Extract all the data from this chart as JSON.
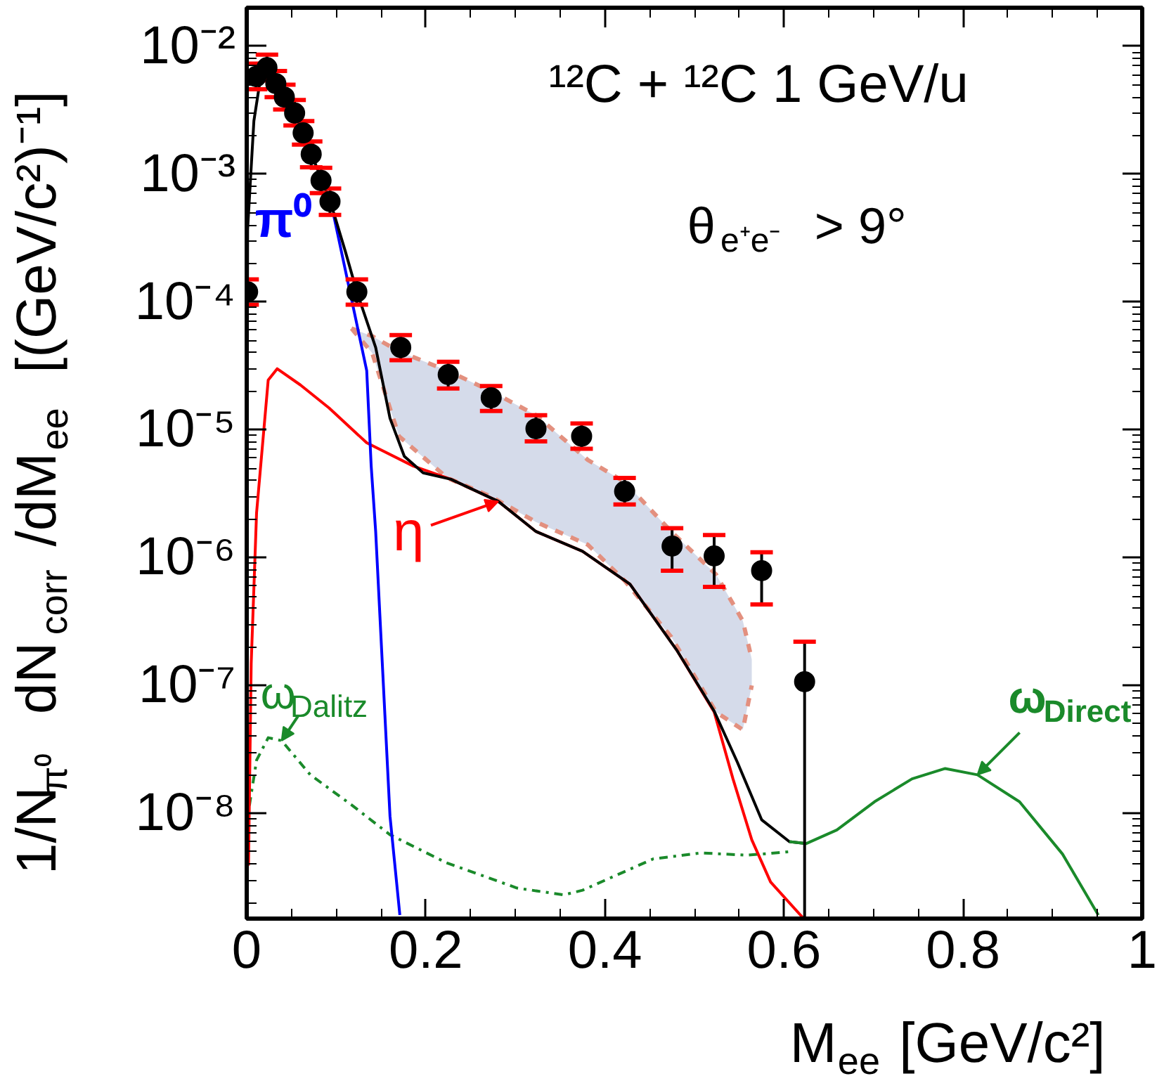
{
  "chart_data": {
    "type": "line",
    "xlabel": "M$_{ee}$ [GeV/c²]",
    "ylabel": "1/N$_{π⁰}$  dN$_{corr}$/dM$_{ee}$  [(GeV/c²)⁻¹]",
    "annotations": [
      "¹²C + ¹²C    1 GeV/u",
      "θ$_{e⁺e⁻}$ > 9°"
    ],
    "log": true,
    "xlim": [
      0,
      1
    ],
    "xticks": [
      0,
      0.2,
      0.4,
      0.6,
      0.8,
      1
    ],
    "ylim": [
      1.5e-09,
      0.02
    ],
    "yticks": [
      {
        "value": 1e-08,
        "label": "10⁻⁸"
      },
      {
        "value": 1e-07,
        "label": "10⁻⁷"
      },
      {
        "value": 1e-06,
        "label": "10⁻⁶"
      },
      {
        "value": 1e-05,
        "label": "10⁻⁵"
      },
      {
        "value": 0.0001,
        "label": "10⁻⁴"
      },
      {
        "value": 0.001,
        "label": "10⁻³"
      },
      {
        "value": 0.01,
        "label": "10⁻²"
      }
    ],
    "series": [
      {
        "type": "line",
        "color": "#e3907f",
        "line_style": "dashed",
        "x": [
          0.117,
          0.14,
          0.17,
          0.224,
          0.273,
          0.323,
          0.381,
          0.422,
          0.474,
          0.524,
          0.554,
          0.564
        ],
        "values": [
          6.2e-05,
          5.4e-05,
          4.1e-05,
          2.9e-05,
          2e-05,
          1.3e-05,
          5.8e-06,
          3.9e-06,
          1.6e-06,
          7.4e-07,
          3.2e-07,
          1.6e-07
        ]
      },
      {
        "type": "line",
        "color": "#e3907f",
        "line_style": "dashed",
        "x": [
          0.117,
          0.14,
          0.17,
          0.224,
          0.273,
          0.323,
          0.381,
          0.422,
          0.474,
          0.524,
          0.554,
          0.564
        ],
        "values": [
          6.2e-05,
          4e-05,
          8.9e-06,
          4.2e-06,
          3e-06,
          1.9e-06,
          1.26e-06,
          6.6e-07,
          2.4e-07,
          6.2e-08,
          4.5e-08,
          1e-07
        ]
      },
      {
        "type": "area",
        "color": "#d5dbea",
        "x": [
          0.117,
          0.14,
          0.17,
          0.224,
          0.273,
          0.323,
          0.381,
          0.422,
          0.474,
          0.524,
          0.554,
          0.564
        ],
        "values": [
          null,
          null,
          null,
          null,
          null,
          null,
          null,
          null,
          null,
          null,
          null,
          null
        ],
        "upper": [
          6.2e-05,
          5.4e-05,
          4.1e-05,
          2.9e-05,
          2e-05,
          1.3e-05,
          5.8e-06,
          3.9e-06,
          1.6e-06,
          7.4e-07,
          3.2e-07,
          1.6e-07
        ],
        "lower": [
          6.2e-05,
          4e-05,
          8.9e-06,
          4.2e-06,
          3e-06,
          1.9e-06,
          1.26e-06,
          6.6e-07,
          2.4e-07,
          6.2e-08,
          4.5e-08,
          1e-07
        ]
      },
      {
        "name": "ω$_{Dalitz}$",
        "color": "#1a8a2a",
        "line_style": "dashdot",
        "x": [
          0.003,
          0.011,
          0.024,
          0.039,
          0.071,
          0.118,
          0.16,
          0.223,
          0.302,
          0.354,
          0.375,
          0.454,
          0.507,
          0.559,
          0.606
        ],
        "values": [
          1.15e-08,
          2.6e-08,
          3.9e-08,
          3.7e-08,
          2e-08,
          1.15e-08,
          6.8e-09,
          4.1e-09,
          2.6e-09,
          2.3e-09,
          2.5e-09,
          4.4e-09,
          4.9e-09,
          4.7e-09,
          5e-09
        ]
      },
      {
        "name": "η",
        "color": "#ff0000",
        "x": [
          0.002,
          0.005,
          0.011,
          0.024,
          0.034,
          0.06,
          0.092,
          0.134,
          0.186,
          0.228,
          0.281,
          0.323,
          0.375,
          0.428,
          0.48,
          0.522,
          0.543,
          0.564,
          0.585,
          0.622
        ],
        "values": [
          3.9e-09,
          1.48e-07,
          2.24e-06,
          2.45e-05,
          3e-05,
          2.24e-05,
          1.48e-05,
          7.9e-06,
          5.2e-06,
          4.1e-06,
          2.75e-06,
          1.6e-06,
          1.12e-06,
          6.2e-07,
          1.9e-07,
          6.2e-08,
          1.86e-08,
          6.2e-09,
          2.9e-09,
          1.5e-09
        ]
      },
      {
        "name": "π⁰",
        "color": "#0000ff",
        "x": [
          0.097,
          0.134,
          0.139,
          0.144,
          0.152,
          0.16,
          0.171
        ],
        "values": [
          0.00048,
          2.9e-05,
          5.2e-06,
          1.6e-06,
          1.23e-07,
          9.5e-09,
          1.6e-09
        ]
      },
      {
        "color": "#000000",
        "x": [
          0,
          0.001,
          0.008,
          0.016,
          0.024,
          0.05,
          0.08,
          0.093,
          0.11,
          0.123,
          0.144,
          0.16,
          0.176,
          0.197,
          0.228,
          0.281,
          0.323,
          0.375,
          0.428,
          0.48,
          0.522,
          0.548,
          0.575,
          0.606,
          0.625
        ],
        "values": [
          2e-09,
          0.00037,
          0.0026,
          0.006,
          0.0068,
          0.0035,
          0.00105,
          0.00062,
          0.00025,
          0.00012,
          4.4e-05,
          1.23e-05,
          6.2e-06,
          4.6e-06,
          4.1e-06,
          2.75e-06,
          1.6e-06,
          1.12e-06,
          6.2e-07,
          1.9e-07,
          6.3e-08,
          2.5e-08,
          8.9e-09,
          6e-09,
          5.8e-09
        ]
      },
      {
        "name": "ω$_{Direct}$",
        "color": "#1a8a2a",
        "x": [
          0.606,
          0.625,
          0.659,
          0.701,
          0.743,
          0.78,
          0.816,
          0.863,
          0.911,
          0.951
        ],
        "values": [
          6e-09,
          5.8e-09,
          7.4e-09,
          1.23e-08,
          1.86e-08,
          2.24e-08,
          2e-08,
          1.23e-08,
          4.8e-09,
          1.6e-09
        ]
      },
      {
        "type": "scatter",
        "color": "#000000",
        "marker": "circle",
        "x": [
          0.001,
          0.0105,
          0.0226,
          0.0325,
          0.042,
          0.0535,
          0.063,
          0.072,
          0.083,
          0.093,
          0.123,
          0.172,
          0.225,
          0.273,
          0.323,
          0.374,
          0.422,
          0.475,
          0.522,
          0.575,
          0.623
        ],
        "values": [
          0.00012,
          0.0058,
          0.0068,
          0.0051,
          0.004,
          0.003,
          0.0021,
          0.00143,
          0.00089,
          0.00061,
          0.00012,
          4.4e-05,
          2.7e-05,
          1.78e-05,
          1.02e-05,
          8.9e-06,
          3.3e-06,
          1.23e-06,
          1.03e-06,
          7.9e-07,
          1.07e-07
        ],
        "errors": [
          [
            9.5e-05,
            0.00015
          ],
          [
            0.0046,
            0.0073
          ],
          [
            0.0054,
            0.0086
          ],
          [
            0.004,
            0.0064
          ],
          [
            0.0032,
            0.005
          ],
          [
            0.0024,
            0.0038
          ],
          [
            0.0017,
            0.0026
          ],
          [
            0.00113,
            0.0018
          ],
          [
            0.00071,
            0.00112
          ],
          [
            0.00048,
            0.00077
          ],
          [
            9.5e-05,
            0.00015
          ],
          [
            3.5e-05,
            5.5e-05
          ],
          [
            2.1e-05,
            3.4e-05
          ],
          [
            1.4e-05,
            2.2e-05
          ],
          [
            8.1e-06,
            1.3e-05
          ],
          [
            7.1e-06,
            1.12e-05
          ],
          [
            2.6e-06,
            4.2e-06
          ],
          [
            7.9e-07,
            1.7e-06
          ],
          [
            5.9e-07,
            1.5e-06
          ],
          [
            4.3e-07,
            1.1e-06
          ],
          [
            1.5e-09,
            2.2e-07
          ]
        ]
      }
    ]
  }
}
